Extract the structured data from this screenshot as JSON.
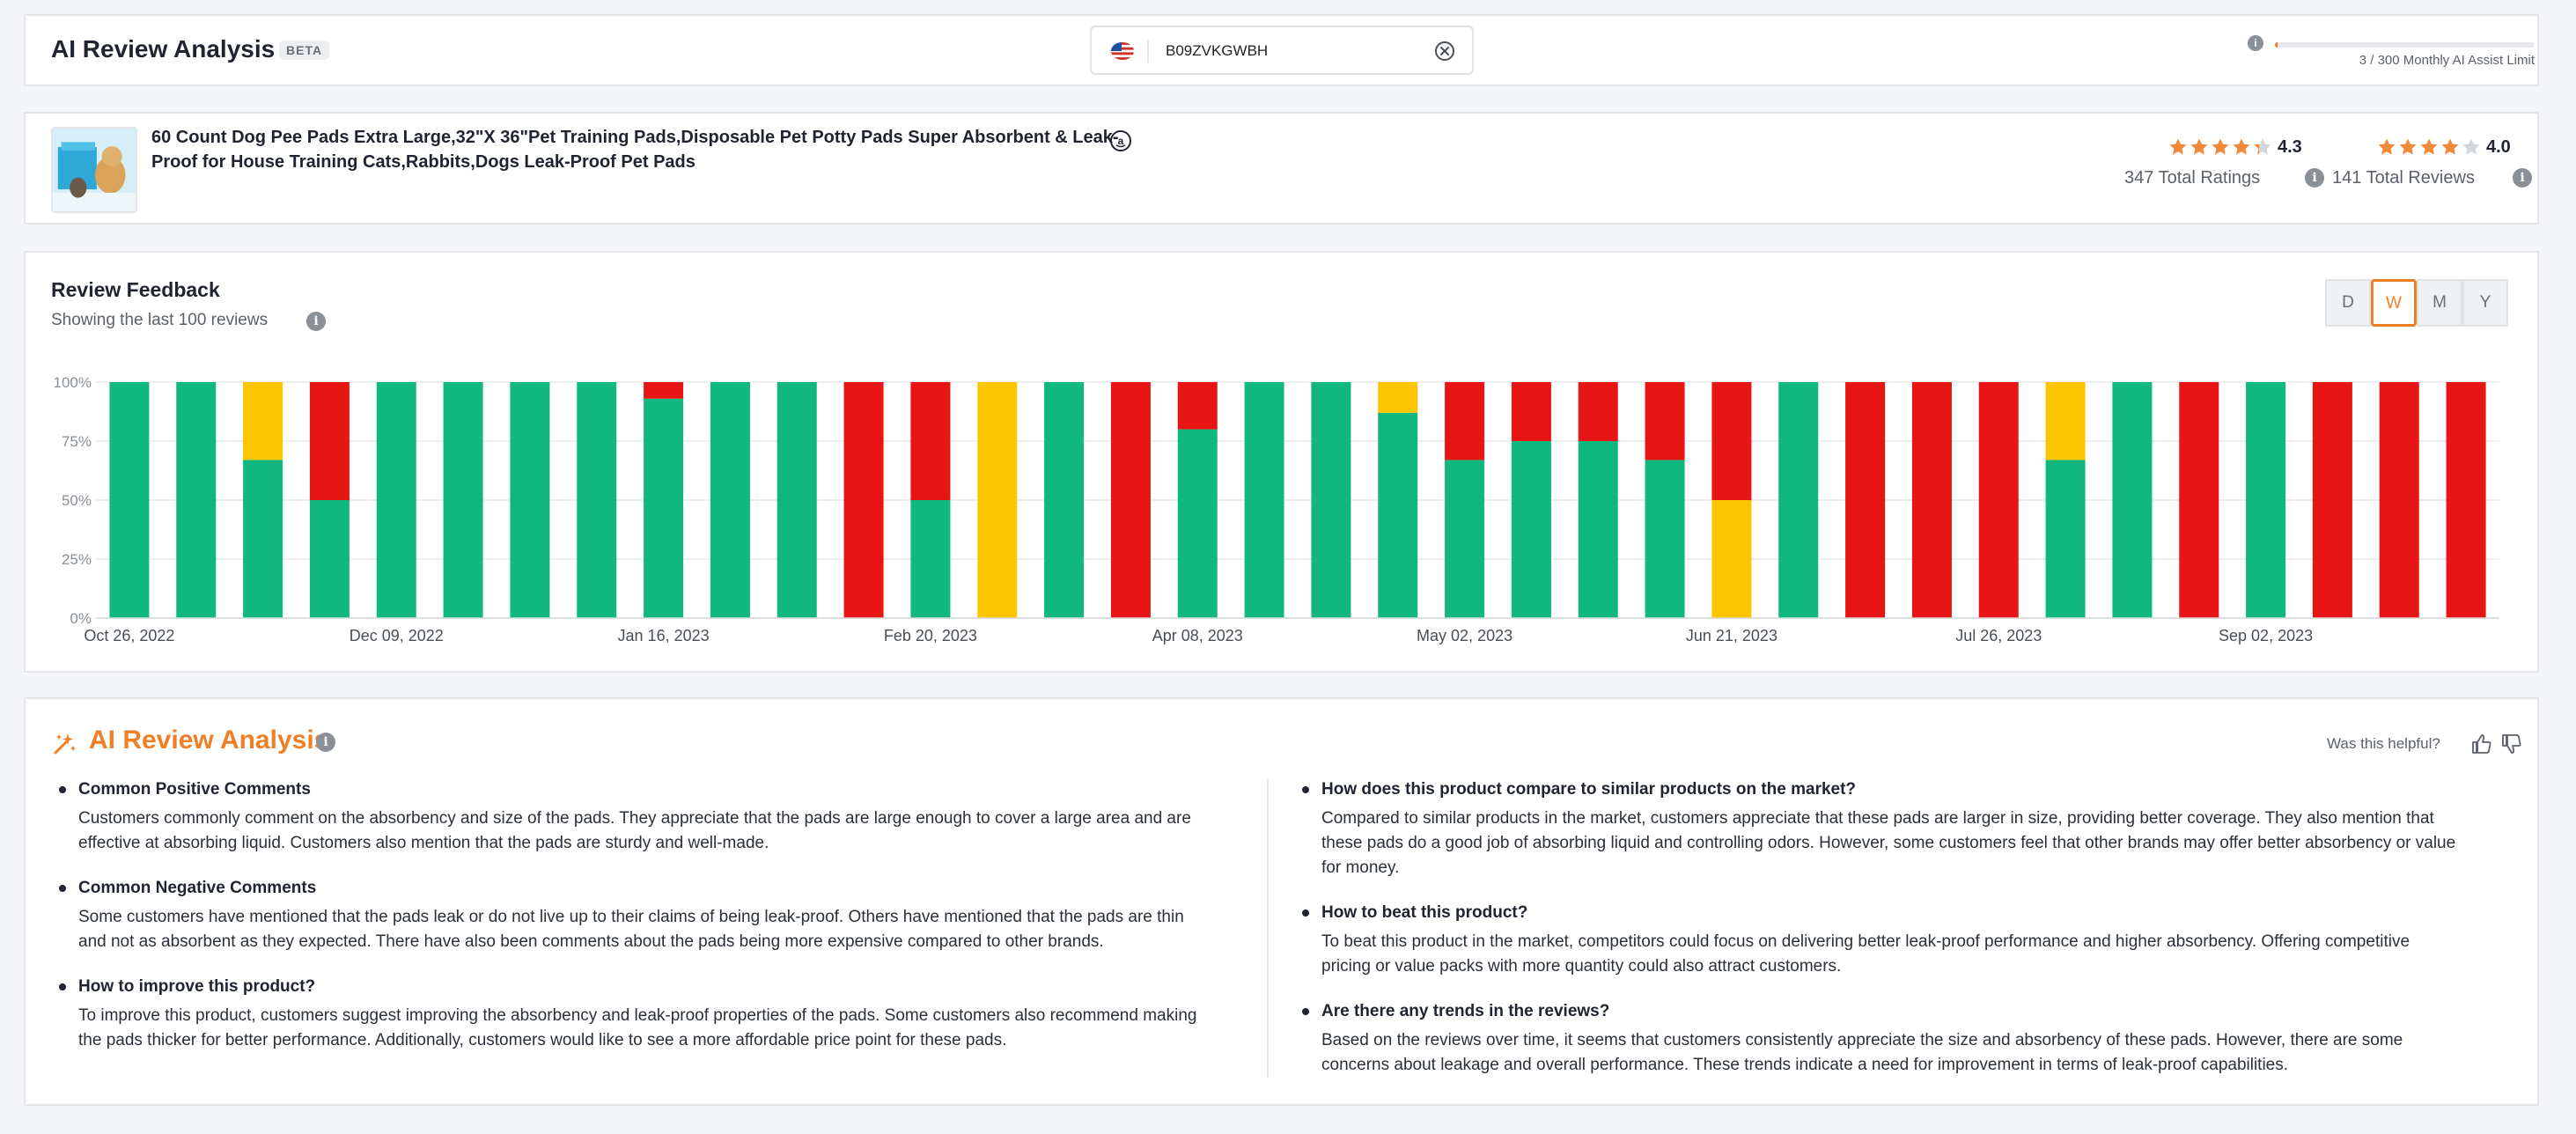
{
  "header": {
    "title": "AI Review Analysis",
    "badge": "BETA",
    "search": {
      "value": "B09ZVKGWBH",
      "placeholder": ""
    },
    "limit": {
      "used": 3,
      "total": 300,
      "label": "3 / 300 Monthly AI Assist Limit"
    }
  },
  "product": {
    "title": "60 Count Dog Pee Pads Extra Large,32\"X 36\"Pet Training Pads,Disposable Pet Potty Pads Super Absorbent & Leak-Proof for House Training Cats,Rabbits,Dogs Leak-Proof Pet Pads",
    "ratings": {
      "stars": 4.3,
      "value": "4.3",
      "label": "347 Total Ratings"
    },
    "reviews": {
      "stars": 4.0,
      "value": "4.0",
      "label": "141 Total Reviews"
    }
  },
  "feedback": {
    "title": "Review Feedback",
    "subtitle": "Showing the last 100 reviews",
    "periods": [
      "D",
      "W",
      "M",
      "Y"
    ],
    "active_period": "W"
  },
  "colors": {
    "positive": "#10b77f",
    "neutral": "#fbc500",
    "negative": "#e81515",
    "accent": "#f07e25"
  },
  "chart_data": {
    "type": "bar",
    "stacked": true,
    "y_ticks": [
      "0%",
      "25%",
      "50%",
      "75%",
      "100%"
    ],
    "ylim": [
      0,
      100
    ],
    "x_tick_labels": [
      "Oct 26, 2022",
      "Dec 09, 2022",
      "Jan 16, 2023",
      "Feb 20, 2023",
      "Apr 08, 2023",
      "May 02, 2023",
      "Jun 21, 2023",
      "Jul 26, 2023",
      "Sep 02, 2023"
    ],
    "x_tick_positions": [
      0,
      4,
      8,
      12,
      16,
      20,
      24,
      28,
      32
    ],
    "grid": true,
    "series": [
      {
        "values": [
          100,
          100,
          67,
          50,
          100,
          100,
          100,
          100,
          93,
          100,
          100,
          0,
          50,
          0,
          100,
          0,
          80,
          100,
          100,
          87,
          67,
          75,
          75,
          67,
          0,
          100,
          0,
          0,
          0,
          67,
          100,
          0,
          100,
          0,
          0,
          0
        ]
      },
      {
        "values": [
          0,
          0,
          33,
          0,
          0,
          0,
          0,
          0,
          0,
          0,
          0,
          0,
          0,
          100,
          0,
          0,
          0,
          0,
          0,
          13,
          0,
          0,
          0,
          0,
          50,
          0,
          0,
          0,
          0,
          33,
          0,
          0,
          0,
          0,
          0,
          0
        ]
      },
      {
        "values": [
          0,
          0,
          0,
          50,
          0,
          0,
          0,
          0,
          7,
          0,
          0,
          100,
          50,
          0,
          0,
          100,
          20,
          0,
          0,
          0,
          33,
          25,
          25,
          33,
          50,
          0,
          100,
          100,
          100,
          0,
          0,
          100,
          0,
          100,
          100,
          100
        ]
      }
    ]
  },
  "analysis": {
    "title": "AI Review Analysis",
    "helpful_label": "Was this helpful?",
    "left": [
      {
        "q": "Common Positive Comments",
        "a": "Customers commonly comment on the absorbency and size of the pads. They appreciate that the pads are large enough to cover a large area and are effective at absorbing liquid. Customers also mention that the pads are sturdy and well-made."
      },
      {
        "q": "Common Negative Comments",
        "a": "Some customers have mentioned that the pads leak or do not live up to their claims of being leak-proof. Others have mentioned that the pads are thin and not as absorbent as they expected. There have also been comments about the pads being more expensive compared to other brands."
      },
      {
        "q": "How to improve this product?",
        "a": "To improve this product, customers suggest improving the absorbency and leak-proof properties of the pads. Some customers also recommend making the pads thicker for better performance. Additionally, customers would like to see a more affordable price point for these pads."
      }
    ],
    "right": [
      {
        "q": "How does this product compare to similar products on the market?",
        "a": "Compared to similar products in the market, customers appreciate that these pads are larger in size, providing better coverage. They also mention that these pads do a good job of absorbing liquid and controlling odors. However, some customers feel that other brands may offer better absorbency or value for money."
      },
      {
        "q": "How to beat this product?",
        "a": "To beat this product in the market, competitors could focus on delivering better leak-proof performance and higher absorbency. Offering competitive pricing or value packs with more quantity could also attract customers."
      },
      {
        "q": "Are there any trends in the reviews?",
        "a": "Based on the reviews over time, it seems that customers consistently appreciate the size and absorbency of these pads. However, there are some concerns about leakage and overall performance. These trends indicate a need for improvement in terms of leak-proof capabilities."
      }
    ]
  }
}
